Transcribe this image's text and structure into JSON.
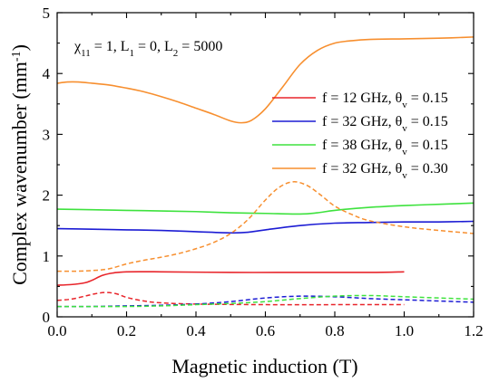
{
  "chart_data": {
    "type": "line",
    "xlabel": "Magnetic induction (T)",
    "ylabel": "Complex wavenumber (mm",
    "ylabel_sup": "-1",
    "ylabel_close": ")",
    "xlim": [
      0.0,
      1.2
    ],
    "ylim": [
      0,
      5
    ],
    "xticks": [
      "0.0",
      "0.2",
      "0.4",
      "0.6",
      "0.8",
      "1.0",
      "1.2"
    ],
    "yticks": [
      "0",
      "1",
      "2",
      "3",
      "4",
      "5"
    ],
    "grid": false,
    "legend_position": "right",
    "annotation": {
      "chi": "χ",
      "chi_sub": "11",
      "chi_rest": " = 1, L",
      "l1_sub": "1",
      "l1_rest": " = 0, L",
      "l2_sub": "2",
      "l2_rest": " = 5000"
    },
    "series": [
      {
        "legend": {
          "f": "f = 12 GHz, θ",
          "sub": "v",
          "rest": " = 0.15"
        },
        "color": "#e8252b",
        "real": {
          "x": [
            0.0,
            0.04,
            0.08,
            0.1,
            0.13,
            0.16,
            0.2,
            0.3,
            0.5,
            0.7,
            0.9,
            1.0
          ],
          "y": [
            0.52,
            0.53,
            0.56,
            0.6,
            0.68,
            0.72,
            0.74,
            0.74,
            0.73,
            0.73,
            0.73,
            0.74
          ]
        },
        "imag": {
          "x": [
            0.0,
            0.04,
            0.08,
            0.11,
            0.14,
            0.17,
            0.2,
            0.25,
            0.3,
            0.4,
            0.6,
            0.8,
            1.0
          ],
          "y": [
            0.27,
            0.29,
            0.34,
            0.38,
            0.4,
            0.38,
            0.32,
            0.26,
            0.23,
            0.21,
            0.2,
            0.2,
            0.2
          ]
        }
      },
      {
        "legend": {
          "f": "f = 32 GHz, θ",
          "sub": "v",
          "rest": " = 0.15"
        },
        "color": "#1c1cd4",
        "real": {
          "x": [
            0.0,
            0.1,
            0.2,
            0.3,
            0.4,
            0.5,
            0.55,
            0.6,
            0.7,
            0.8,
            0.9,
            1.0,
            1.1,
            1.2
          ],
          "y": [
            1.45,
            1.44,
            1.43,
            1.42,
            1.4,
            1.38,
            1.39,
            1.43,
            1.5,
            1.54,
            1.55,
            1.56,
            1.56,
            1.57
          ]
        },
        "imag": {
          "x": [
            0.0,
            0.1,
            0.2,
            0.3,
            0.4,
            0.5,
            0.6,
            0.7,
            0.8,
            0.9,
            1.0,
            1.1,
            1.2
          ],
          "y": [
            0.17,
            0.17,
            0.18,
            0.19,
            0.21,
            0.25,
            0.31,
            0.34,
            0.33,
            0.3,
            0.28,
            0.26,
            0.24
          ]
        }
      },
      {
        "legend": {
          "f": "f = 38 GHz, θ",
          "sub": "v",
          "rest": " = 0.15"
        },
        "color": "#3ee23e",
        "real": {
          "x": [
            0.0,
            0.1,
            0.2,
            0.3,
            0.4,
            0.5,
            0.6,
            0.7,
            0.75,
            0.8,
            0.9,
            1.0,
            1.1,
            1.2
          ],
          "y": [
            1.77,
            1.76,
            1.75,
            1.74,
            1.73,
            1.71,
            1.7,
            1.69,
            1.71,
            1.75,
            1.8,
            1.83,
            1.85,
            1.87
          ]
        },
        "imag": {
          "x": [
            0.0,
            0.1,
            0.2,
            0.3,
            0.4,
            0.5,
            0.6,
            0.7,
            0.8,
            0.9,
            1.0,
            1.1,
            1.2
          ],
          "y": [
            0.17,
            0.17,
            0.17,
            0.18,
            0.2,
            0.22,
            0.25,
            0.3,
            0.34,
            0.35,
            0.33,
            0.31,
            0.29
          ]
        }
      },
      {
        "legend": {
          "f": "f = 32 GHz, θ",
          "sub": "v",
          "rest": " = 0.30"
        },
        "color": "#f78f2f",
        "real": {
          "x": [
            0.0,
            0.03,
            0.06,
            0.1,
            0.15,
            0.2,
            0.25,
            0.3,
            0.35,
            0.4,
            0.45,
            0.5,
            0.53,
            0.56,
            0.6,
            0.65,
            0.7,
            0.75,
            0.8,
            0.85,
            0.9,
            1.0,
            1.1,
            1.2
          ],
          "y": [
            3.84,
            3.86,
            3.86,
            3.84,
            3.81,
            3.76,
            3.7,
            3.62,
            3.53,
            3.43,
            3.33,
            3.22,
            3.19,
            3.23,
            3.42,
            3.78,
            4.15,
            4.38,
            4.5,
            4.54,
            4.56,
            4.57,
            4.58,
            4.6
          ]
        },
        "imag": {
          "x": [
            0.0,
            0.05,
            0.1,
            0.15,
            0.2,
            0.25,
            0.3,
            0.35,
            0.4,
            0.45,
            0.5,
            0.55,
            0.6,
            0.64,
            0.68,
            0.72,
            0.76,
            0.8,
            0.85,
            0.9,
            1.0,
            1.1,
            1.2
          ],
          "y": [
            0.75,
            0.75,
            0.76,
            0.79,
            0.87,
            0.93,
            0.98,
            1.04,
            1.12,
            1.22,
            1.37,
            1.6,
            1.92,
            2.13,
            2.22,
            2.16,
            2.0,
            1.82,
            1.68,
            1.58,
            1.48,
            1.42,
            1.37
          ]
        }
      }
    ]
  }
}
